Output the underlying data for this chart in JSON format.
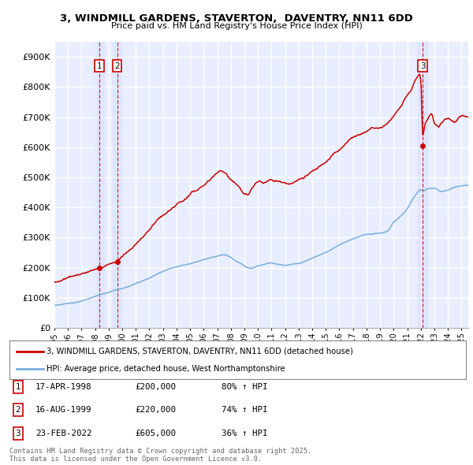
{
  "title_line1": "3, WINDMILL GARDENS, STAVERTON,  DAVENTRY, NN11 6DD",
  "title_line2": "Price paid vs. HM Land Registry's House Price Index (HPI)",
  "ylim": [
    0,
    950000
  ],
  "yticks": [
    0,
    100000,
    200000,
    300000,
    400000,
    500000,
    600000,
    700000,
    800000,
    900000
  ],
  "ytick_labels": [
    "£0",
    "£100K",
    "£200K",
    "£300K",
    "£400K",
    "£500K",
    "£600K",
    "£700K",
    "£800K",
    "£900K"
  ],
  "background_color": "#ffffff",
  "plot_bg_color": "#e8eeff",
  "grid_color": "#ffffff",
  "purchases": [
    {
      "label": "1",
      "date_x": 1998.29,
      "price": 200000
    },
    {
      "label": "2",
      "date_x": 1999.62,
      "price": 220000
    },
    {
      "label": "3",
      "date_x": 2022.15,
      "price": 605000
    }
  ],
  "purchase_table": [
    {
      "num": "1",
      "date": "17-APR-1998",
      "price": "£200,000",
      "hpi": "80% ↑ HPI"
    },
    {
      "num": "2",
      "date": "16-AUG-1999",
      "price": "£220,000",
      "hpi": "74% ↑ HPI"
    },
    {
      "num": "3",
      "date": "23-FEB-2022",
      "price": "£605,000",
      "hpi": "36% ↑ HPI"
    }
  ],
  "legend_line1": "3, WINDMILL GARDENS, STAVERTON, DAVENTRY, NN11 6DD (detached house)",
  "legend_line2": "HPI: Average price, detached house, West Northamptonshire",
  "footer": "Contains HM Land Registry data © Crown copyright and database right 2025.\nThis data is licensed under the Open Government Licence v3.0.",
  "red_line_color": "#cc0000",
  "blue_line_color": "#7aaddd",
  "vline_color": "#cc0000",
  "shade_color": "#c8d0ff",
  "xmin": 1995,
  "xmax": 2025.5,
  "xtick_years": [
    1995,
    1996,
    1997,
    1998,
    1999,
    2000,
    2001,
    2002,
    2003,
    2004,
    2005,
    2006,
    2007,
    2008,
    2009,
    2010,
    2011,
    2012,
    2013,
    2014,
    2015,
    2016,
    2017,
    2018,
    2019,
    2020,
    2021,
    2022,
    2023,
    2024,
    2025
  ]
}
